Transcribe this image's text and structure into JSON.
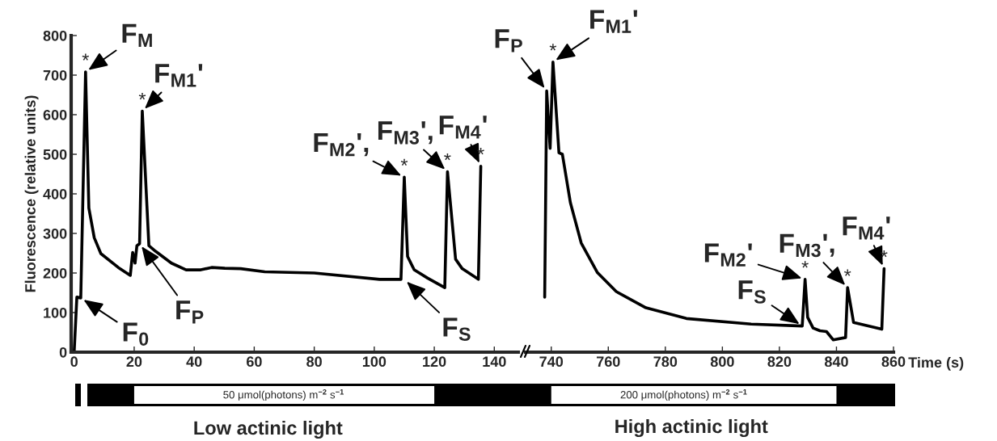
{
  "chart_data": [
    {
      "type": "line",
      "ylabel": "Fluorescence (relative units)",
      "xlim": [
        -1,
        148
      ],
      "xticks": [
        0,
        20,
        40,
        60,
        80,
        100,
        120,
        140
      ],
      "ylim": [
        0,
        800
      ],
      "yticks": [
        0,
        100,
        200,
        300,
        400,
        500,
        600,
        700,
        800
      ],
      "series": [
        {
          "color": "#000000",
          "x": [
            0,
            0.9,
            2.2,
            3.8,
            4.9,
            6.7,
            8.9,
            14.7,
            18.7,
            19.5,
            20.3,
            20.9,
            21.8,
            22.7,
            24.9,
            27.1,
            32.4,
            37.3,
            42.2,
            45.8,
            50.2,
            55.5,
            63.5,
            80,
            101.8,
            108.9,
            110,
            111.1,
            113.3,
            117.8,
            123.5,
            124.4,
            127.1,
            129.3,
            134.7,
            135.5
          ],
          "values": [
            0,
            139,
            137,
            708,
            364,
            289,
            249,
            214,
            194,
            252,
            225,
            269,
            274,
            609,
            269,
            255,
            225,
            208,
            208,
            214,
            212,
            211,
            203,
            200,
            184,
            184,
            442,
            242,
            208,
            187,
            163,
            456,
            235,
            211,
            184,
            470
          ]
        }
      ],
      "annotations": [
        {
          "text": "F$_{M}$",
          "x": 3.8,
          "y": 708
        },
        {
          "text": "F$_{M1}$'",
          "x": 22.7,
          "y": 609
        },
        {
          "text": "F$_{0}$",
          "x": 2.2,
          "y": 137
        },
        {
          "text": "F$_{P}$",
          "x": 21.8,
          "y": 274
        },
        {
          "text": "F$_{S}$",
          "x": 110,
          "y": 184
        },
        {
          "text": "F$_{M2}$',",
          "x": 110,
          "y": 442
        },
        {
          "text": "F$_{M3}$',",
          "x": 124.4,
          "y": 456
        },
        {
          "text": "F$_{M4}$'",
          "x": 135.5,
          "y": 470
        },
        {
          "text": "*",
          "x": 3.8,
          "y": 708
        },
        {
          "text": "*",
          "x": 22.7,
          "y": 609
        },
        {
          "text": "*",
          "x": 110,
          "y": 442
        },
        {
          "text": "*",
          "x": 124.4,
          "y": 456
        },
        {
          "text": "*",
          "x": 135.5,
          "y": 470
        },
        "50 μmol(photons) m$^{−2}$ s$^{−1}$",
        "Low actinic light"
      ]
    },
    {
      "type": "line",
      "xlabel": "Time (s)",
      "xlim": [
        731,
        860
      ],
      "xticks": [
        740,
        760,
        780,
        800,
        820,
        840,
        860
      ],
      "ylim": [
        0,
        800
      ],
      "tick_labels": "x",
      "series": [
        {
          "color": "#000000",
          "x": [
            737.7,
            738.4,
            739.6,
            740.6,
            742.7,
            743.9,
            746.7,
            750.5,
            756.2,
            762.8,
            773.2,
            787.4,
            810.1,
            828,
            829,
            829.9,
            831.8,
            834.2,
            836.5,
            838.9,
            843.2,
            843.9,
            846,
            855.9,
            856.7
          ],
          "values": [
            139,
            660,
            515,
            733,
            504,
            500,
            378,
            276,
            201,
            153,
            112,
            85,
            71,
            66,
            184,
            88,
            61,
            54,
            52,
            31,
            37,
            163,
            75,
            58,
            211
          ]
        }
      ],
      "annotations": [
        {
          "text": "F$_{P}$",
          "x": 738.4,
          "y": 660
        },
        {
          "text": "F$_{M1}$'",
          "x": 740.6,
          "y": 733
        },
        {
          "text": "F$_{S}$",
          "x": 828,
          "y": 66
        },
        {
          "text": "F$_{M2}$'",
          "x": 829,
          "y": 184
        },
        {
          "text": "F$_{M3}$',",
          "x": 843.9,
          "y": 163
        },
        {
          "text": "F$_{M4}$'",
          "x": 856.7,
          "y": 211
        },
        {
          "text": "*",
          "x": 740.6,
          "y": 733
        },
        {
          "text": "*",
          "x": 829,
          "y": 184
        },
        {
          "text": "*",
          "x": 843.9,
          "y": 163
        },
        {
          "text": "*",
          "x": 856.7,
          "y": 211
        },
        "200 μmol(photons) m$^{−2}$ s$^{−1}$",
        "High actinic light"
      ]
    }
  ]
}
